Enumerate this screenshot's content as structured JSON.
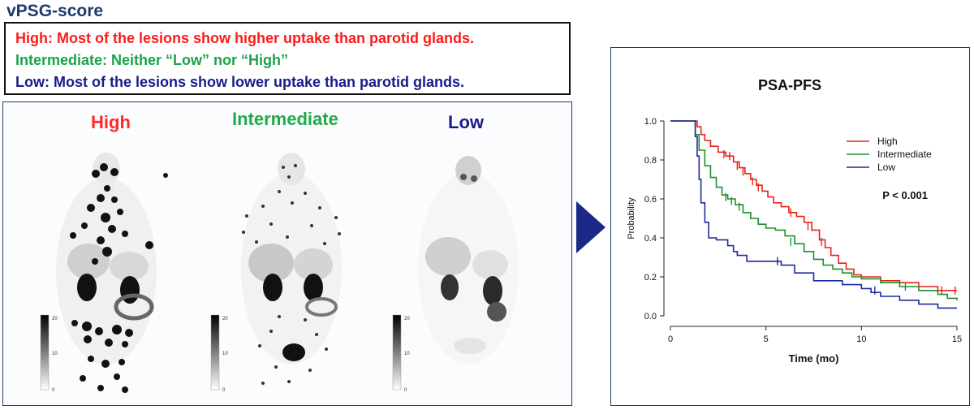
{
  "figure_title": "vPSG-score",
  "definitions": [
    {
      "text": "High: Most of the lesions show higher uptake than parotid glands.",
      "color": "#ff1a1a"
    },
    {
      "text": "Intermediate: Neither “Low” nor “High”",
      "color": "#1aa34a"
    },
    {
      "text": "Low: Most of the lesions show lower uptake than parotid glands.",
      "color": "#1a1a8a"
    }
  ],
  "scans": [
    {
      "label": "High",
      "color": "#ff2a2a"
    },
    {
      "label": "Intermediate",
      "color": "#22aa4a"
    },
    {
      "label": "Low",
      "color": "#1a1a8a"
    }
  ],
  "scale_ticks": [
    "20",
    "10",
    "0"
  ],
  "chart_data": {
    "type": "line",
    "title": "PSA-PFS",
    "xlabel": "Time (mo)",
    "ylabel": "Probability",
    "xlim": [
      0,
      15
    ],
    "ylim": [
      0,
      1
    ],
    "xticks": [
      0,
      5,
      10,
      15
    ],
    "yticks": [
      0.0,
      0.2,
      0.4,
      0.6,
      0.8,
      1.0
    ],
    "ytick_labels": [
      "0.0",
      "0.2",
      "0.4",
      "0.6",
      "0.8",
      "1.0"
    ],
    "annotation": "P < 0.001",
    "legend_position": "top-right",
    "series": [
      {
        "name": "High",
        "color": "#e8231a",
        "step": true,
        "points": [
          [
            0,
            1.0
          ],
          [
            1.2,
            1.0
          ],
          [
            1.4,
            0.97
          ],
          [
            1.6,
            0.93
          ],
          [
            1.8,
            0.9
          ],
          [
            2.1,
            0.87
          ],
          [
            2.5,
            0.84
          ],
          [
            2.9,
            0.82
          ],
          [
            3.3,
            0.79
          ],
          [
            3.6,
            0.76
          ],
          [
            3.9,
            0.73
          ],
          [
            4.2,
            0.7
          ],
          [
            4.5,
            0.67
          ],
          [
            4.8,
            0.64
          ],
          [
            5.1,
            0.61
          ],
          [
            5.4,
            0.58
          ],
          [
            5.8,
            0.56
          ],
          [
            6.2,
            0.53
          ],
          [
            6.6,
            0.51
          ],
          [
            7.0,
            0.48
          ],
          [
            7.4,
            0.44
          ],
          [
            7.8,
            0.39
          ],
          [
            8.1,
            0.35
          ],
          [
            8.4,
            0.31
          ],
          [
            8.8,
            0.27
          ],
          [
            9.2,
            0.24
          ],
          [
            9.6,
            0.21
          ],
          [
            10.0,
            0.2
          ],
          [
            11.0,
            0.18
          ],
          [
            12.0,
            0.17
          ],
          [
            13.0,
            0.15
          ],
          [
            14.0,
            0.13
          ],
          [
            15,
            0.13
          ]
        ],
        "censors": [
          [
            2.8,
            0.83
          ],
          [
            3.1,
            0.82
          ],
          [
            3.5,
            0.77
          ],
          [
            3.8,
            0.74
          ],
          [
            4.3,
            0.69
          ],
          [
            4.6,
            0.66
          ],
          [
            6.3,
            0.53
          ],
          [
            7.2,
            0.46
          ],
          [
            7.9,
            0.38
          ],
          [
            14.2,
            0.13
          ],
          [
            14.9,
            0.13
          ]
        ]
      },
      {
        "name": "Intermediate",
        "color": "#1f8f2a",
        "step": true,
        "points": [
          [
            0,
            1.0
          ],
          [
            1.0,
            1.0
          ],
          [
            1.3,
            0.93
          ],
          [
            1.5,
            0.85
          ],
          [
            1.8,
            0.77
          ],
          [
            2.1,
            0.71
          ],
          [
            2.4,
            0.66
          ],
          [
            2.7,
            0.62
          ],
          [
            3.0,
            0.6
          ],
          [
            3.4,
            0.57
          ],
          [
            3.8,
            0.53
          ],
          [
            4.2,
            0.5
          ],
          [
            4.6,
            0.47
          ],
          [
            5.0,
            0.45
          ],
          [
            5.5,
            0.44
          ],
          [
            6.0,
            0.41
          ],
          [
            6.5,
            0.37
          ],
          [
            7.0,
            0.33
          ],
          [
            7.5,
            0.29
          ],
          [
            8.0,
            0.26
          ],
          [
            8.5,
            0.24
          ],
          [
            9.0,
            0.22
          ],
          [
            9.5,
            0.2
          ],
          [
            10.0,
            0.19
          ],
          [
            11.0,
            0.17
          ],
          [
            12.0,
            0.15
          ],
          [
            13.0,
            0.13
          ],
          [
            14.0,
            0.11
          ],
          [
            14.5,
            0.09
          ],
          [
            15,
            0.08
          ]
        ],
        "censors": [
          [
            2.9,
            0.61
          ],
          [
            3.2,
            0.59
          ],
          [
            3.6,
            0.56
          ],
          [
            6.3,
            0.38
          ],
          [
            12.3,
            0.15
          ]
        ]
      },
      {
        "name": "Low",
        "color": "#1f2a9c",
        "step": true,
        "points": [
          [
            0,
            1.0
          ],
          [
            1.1,
            1.0
          ],
          [
            1.3,
            0.92
          ],
          [
            1.4,
            0.82
          ],
          [
            1.5,
            0.7
          ],
          [
            1.6,
            0.58
          ],
          [
            1.8,
            0.48
          ],
          [
            2.0,
            0.4
          ],
          [
            2.4,
            0.39
          ],
          [
            3.0,
            0.36
          ],
          [
            3.3,
            0.33
          ],
          [
            3.5,
            0.31
          ],
          [
            4.0,
            0.28
          ],
          [
            5.0,
            0.28
          ],
          [
            5.8,
            0.26
          ],
          [
            6.5,
            0.22
          ],
          [
            7.5,
            0.18
          ],
          [
            9.0,
            0.16
          ],
          [
            10.0,
            0.14
          ],
          [
            10.5,
            0.12
          ],
          [
            11.0,
            0.1
          ],
          [
            12.0,
            0.08
          ],
          [
            13.0,
            0.06
          ],
          [
            14.0,
            0.04
          ],
          [
            15,
            0.04
          ]
        ],
        "censors": [
          [
            5.6,
            0.28
          ],
          [
            10.7,
            0.13
          ]
        ]
      }
    ]
  }
}
